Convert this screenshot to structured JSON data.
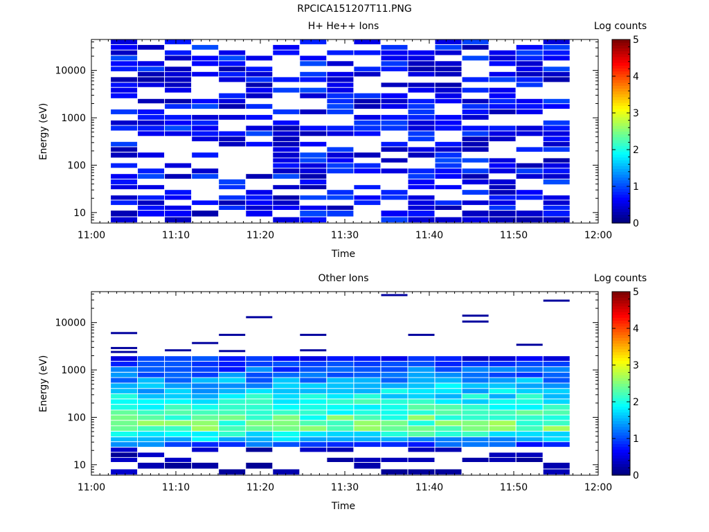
{
  "figure_title": "RPCICA151207T11.PNG",
  "colorbar": {
    "label": "Log counts",
    "ticks": [
      "0",
      "1",
      "2",
      "3",
      "4",
      "5"
    ],
    "range": [
      0,
      5
    ],
    "colormap": "jet"
  },
  "chart_data": [
    {
      "type": "heatmap",
      "title": "H+ He++ Ions",
      "xlabel": "Time",
      "ylabel": "Energy (eV)",
      "x_ticks": [
        "11:00",
        "11:10",
        "11:20",
        "11:30",
        "11:40",
        "11:50",
        "12:00"
      ],
      "x_range_minutes": [
        0,
        60
      ],
      "y_scale": "log",
      "y_ticks": [
        "10",
        "100",
        "1000",
        "10000"
      ],
      "y_range": [
        6,
        45000
      ],
      "time_bins_start_minutes": [
        2.3,
        5.5,
        8.7,
        11.9,
        15.1,
        18.3,
        21.5,
        24.7,
        27.9,
        31.1,
        34.3,
        37.5,
        40.7,
        43.9,
        47.1,
        50.3,
        53.5
      ],
      "time_bin_width_minutes": 3.2,
      "energy_bins_eV": [
        6,
        8,
        11,
        14,
        18,
        23,
        30,
        38,
        50,
        65,
        85,
        110,
        140,
        185,
        240,
        310,
        400,
        520,
        680,
        880,
        1150,
        1500,
        1950,
        2500,
        3300,
        4300,
        5500,
        7200,
        9300,
        12000,
        15700,
        20400,
        26500,
        34500,
        45000
      ],
      "pattern": "sparse",
      "level_mean": 0.6,
      "level_noise": 0.4,
      "fill_probability": 0.62,
      "random_seed": 11
    },
    {
      "type": "heatmap",
      "title": "Other Ions",
      "xlabel": "Time",
      "ylabel": "Energy (eV)",
      "x_ticks": [
        "11:00",
        "11:10",
        "11:20",
        "11:30",
        "11:40",
        "11:50",
        "12:00"
      ],
      "x_range_minutes": [
        0,
        60
      ],
      "y_scale": "log",
      "y_ticks": [
        "10",
        "100",
        "1000",
        "10000"
      ],
      "y_range": [
        6,
        45000
      ],
      "time_bins_start_minutes": [
        2.3,
        5.5,
        8.7,
        11.9,
        15.1,
        18.3,
        21.5,
        24.7,
        27.9,
        31.1,
        34.3,
        37.5,
        40.7,
        43.9,
        47.1,
        50.3,
        53.5
      ],
      "time_bin_width_minutes": 3.2,
      "energy_bins_eV": [
        6,
        8,
        11,
        14,
        18,
        23,
        30,
        38,
        50,
        65,
        85,
        110,
        140,
        185,
        240,
        310,
        400,
        520,
        680,
        880,
        1150,
        1500,
        1950,
        2500,
        3300,
        4300,
        5500,
        7200,
        9300,
        12000,
        15700,
        20400,
        26500,
        34500,
        45000
      ],
      "pattern": "band",
      "band_peak_eV": 60,
      "band_peak_level": 2.4,
      "band_top_eV": 2000,
      "band_bottom_eV": 22,
      "level_noise": 0.35,
      "random_seed": 7,
      "high_energy_streaks": [
        {
          "start_min": 2.3,
          "eV": 6000
        },
        {
          "start_min": 2.3,
          "eV": 2900
        },
        {
          "start_min": 2.3,
          "eV": 2400
        },
        {
          "start_min": 8.7,
          "eV": 2600
        },
        {
          "start_min": 11.9,
          "eV": 3700
        },
        {
          "start_min": 15.1,
          "eV": 5500
        },
        {
          "start_min": 15.1,
          "eV": 2500
        },
        {
          "start_min": 18.3,
          "eV": 13000
        },
        {
          "start_min": 24.7,
          "eV": 5500
        },
        {
          "start_min": 24.7,
          "eV": 2600
        },
        {
          "start_min": 34.3,
          "eV": 38000
        },
        {
          "start_min": 37.5,
          "eV": 5500
        },
        {
          "start_min": 43.9,
          "eV": 14000
        },
        {
          "start_min": 43.9,
          "eV": 10500
        },
        {
          "start_min": 50.3,
          "eV": 3400
        },
        {
          "start_min": 53.5,
          "eV": 29000
        }
      ]
    }
  ]
}
